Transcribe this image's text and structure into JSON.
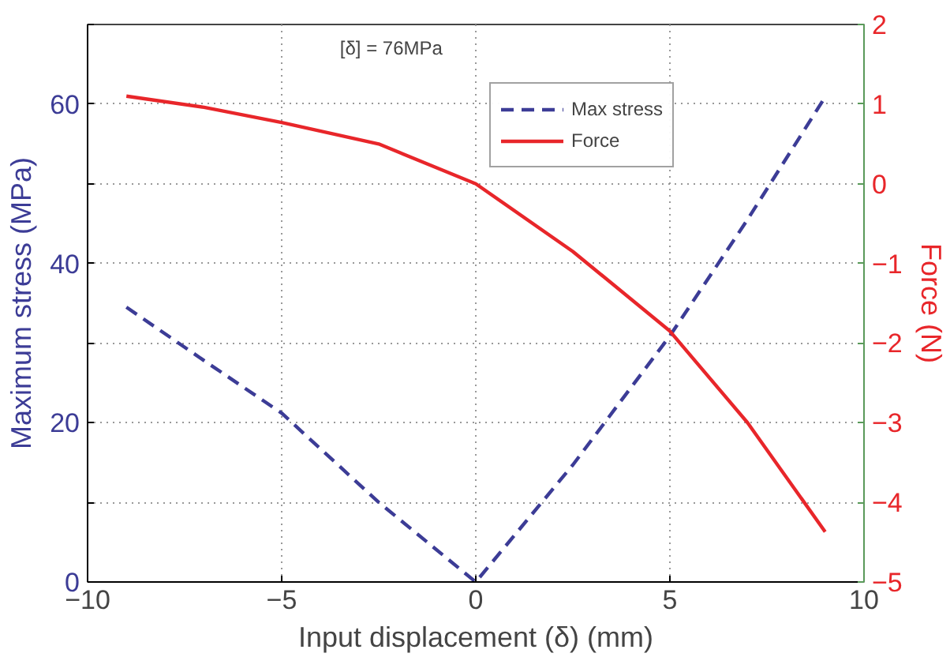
{
  "chart_data": {
    "type": "line",
    "xlabel": "Input displacement (δ) (mm)",
    "ylabel": "Maximum stress (MPa)",
    "y2label": "Force (N)",
    "annotations": [
      "[δ] = 76MPa"
    ],
    "xlim": [
      -10,
      10
    ],
    "xticks": [
      -10,
      -5,
      0,
      5,
      10
    ],
    "ylim": [
      0,
      70
    ],
    "yticks": [
      0,
      {
        "value": 10,
        "label": null
      },
      20,
      {
        "value": 30,
        "label": null
      },
      40,
      {
        "value": 50,
        "label": null
      },
      60,
      {
        "value": 70,
        "label": null
      }
    ],
    "y2lim": [
      -5,
      2
    ],
    "y2ticks": [
      -5,
      -4,
      -3,
      -2,
      -1,
      0,
      1,
      2
    ],
    "grid": true,
    "legend": "top right",
    "series": [
      {
        "name": "Max stress",
        "color": "#3c3c96",
        "line_style": "dashed",
        "x": [
          -9,
          -7,
          -5,
          -2.5,
          0,
          2.5,
          5,
          7,
          9
        ],
        "values": [
          34.5,
          27.8,
          21.2,
          10,
          0,
          14.7,
          30.9,
          45.5,
          60.9
        ]
      },
      {
        "name": "Force",
        "color": "#e8262a",
        "line_style": "solid",
        "axis": "y2",
        "x": [
          -9,
          -7,
          -5,
          -2.5,
          0,
          2.5,
          5,
          7,
          9
        ],
        "values": [
          1.1,
          0.96,
          0.77,
          0.5,
          0,
          -0.85,
          -1.85,
          -3.0,
          -4.37
        ]
      }
    ]
  }
}
